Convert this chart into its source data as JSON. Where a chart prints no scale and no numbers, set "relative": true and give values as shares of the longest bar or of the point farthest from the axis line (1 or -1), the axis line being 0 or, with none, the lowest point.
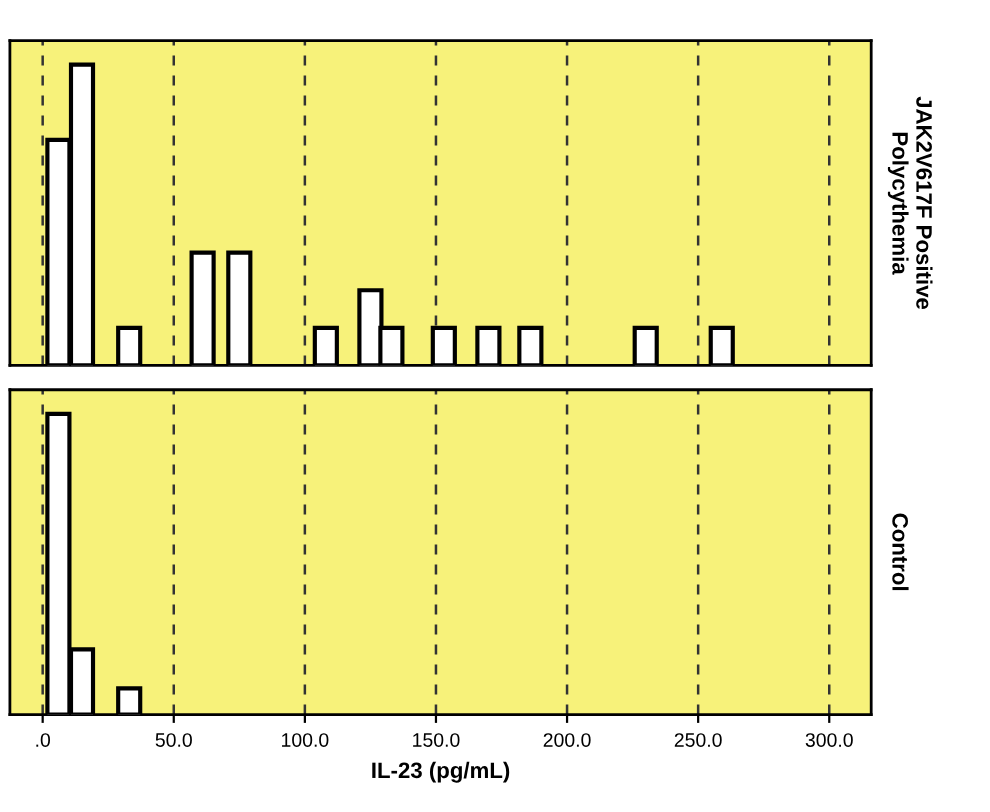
{
  "chart_data": [
    {
      "type": "bar",
      "ylabel": "JAK2V617F Positive\nPolycythemia",
      "relative": true,
      "x": [
        6,
        15,
        33,
        61,
        75,
        108,
        125,
        133,
        153,
        170,
        186,
        230,
        259
      ],
      "values": [
        0.75,
        1,
        0.125,
        0.375,
        0.375,
        0.125,
        0.25,
        0.125,
        0.125,
        0.125,
        0.125,
        0.125,
        0.125
      ],
      "color": "#ffffff",
      "xlim": [
        -12.5,
        316
      ],
      "xticks": [
        {
          "value": 0,
          "label": null
        },
        {
          "value": 50,
          "label": null
        },
        {
          "value": 100,
          "label": null
        },
        {
          "value": 150,
          "label": null
        },
        {
          "value": 200,
          "label": null
        },
        {
          "value": 250,
          "label": null
        },
        {
          "value": 300,
          "label": null
        }
      ],
      "grid": "x",
      "tick_labels": false
    },
    {
      "type": "bar",
      "ylabel": "Control",
      "xlabel": "IL-23 (pg/mL)",
      "relative": true,
      "x": [
        6,
        15,
        33
      ],
      "values": [
        1,
        0.217,
        0.087
      ],
      "color": "#ffffff",
      "xlim": [
        -12.5,
        316
      ],
      "xticks": [
        {
          "value": 0,
          "label": ".0"
        },
        {
          "value": 50,
          "label": "50.0"
        },
        {
          "value": 100,
          "label": "100.0"
        },
        {
          "value": 150,
          "label": "150.0"
        },
        {
          "value": 200,
          "label": "200.0"
        },
        {
          "value": 250,
          "label": "250.0"
        },
        {
          "value": 300,
          "label": "300.0"
        }
      ],
      "grid": "x"
    }
  ]
}
